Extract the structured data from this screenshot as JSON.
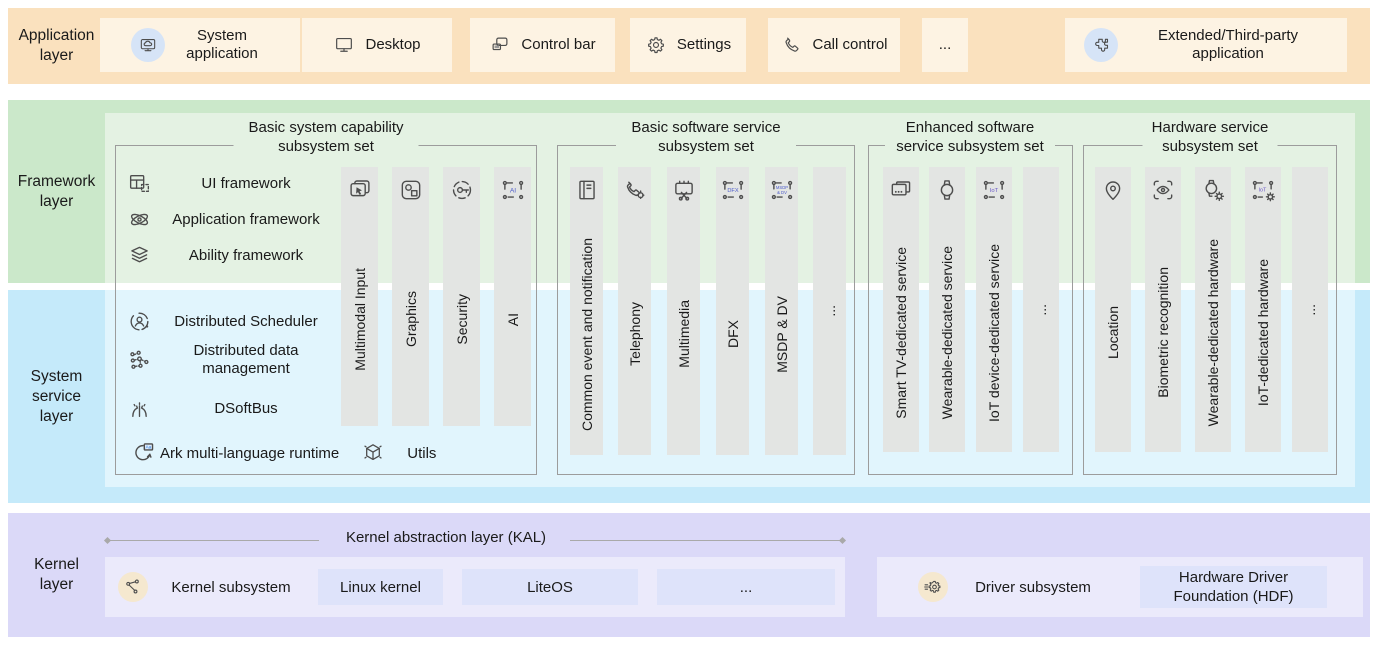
{
  "application_layer": {
    "label": "Application layer",
    "items": [
      {
        "label": "System application",
        "icon": "system-application"
      },
      {
        "label": "Desktop",
        "icon": "desktop"
      },
      {
        "label": "Control bar",
        "icon": "control-bar"
      },
      {
        "label": "Settings",
        "icon": "settings"
      },
      {
        "label": "Call control",
        "icon": "call-control"
      },
      {
        "label": "..."
      },
      {
        "label": "Extended/Third-party application",
        "icon": "extended-application"
      }
    ]
  },
  "framework_layer": {
    "label": "Framework layer",
    "items": [
      {
        "label": "UI framework",
        "icon": "ui-framework"
      },
      {
        "label": "Application framework",
        "icon": "application-framework"
      },
      {
        "label": "Ability framework",
        "icon": "ability-framework"
      }
    ]
  },
  "system_service_layer": {
    "label": "System service layer",
    "items": [
      {
        "label": "Distributed Scheduler",
        "icon": "distributed-scheduler"
      },
      {
        "label": "Distributed data management",
        "icon": "distributed-data-management"
      },
      {
        "label": "DSoftBus",
        "icon": "dsoftbus"
      },
      {
        "label": "Ark multi-language runtime",
        "icon": "ark-runtime"
      },
      {
        "label": "Utils",
        "icon": "utils"
      }
    ]
  },
  "subsystem_sets": [
    {
      "title": "Basic system capability subsystem set",
      "bars": [
        {
          "label": "Multimodal Input",
          "icon": "multimodal-input"
        },
        {
          "label": "Graphics",
          "icon": "graphics"
        },
        {
          "label": "Security",
          "icon": "security"
        },
        {
          "label": "AI",
          "icon": "ai"
        }
      ]
    },
    {
      "title": "Basic software service subsystem set",
      "bars": [
        {
          "label": "Common event and notification",
          "icon": "common-event-notification"
        },
        {
          "label": "Telephony",
          "icon": "telephony"
        },
        {
          "label": "Multimedia",
          "icon": "multimedia"
        },
        {
          "label": "DFX",
          "icon": "dfx"
        },
        {
          "label": "MSDP & DV",
          "icon": "msdp-dv"
        },
        {
          "label": "..."
        }
      ]
    },
    {
      "title": "Enhanced software service subsystem set",
      "bars": [
        {
          "label": "Smart TV-dedicated service",
          "icon": "smart-tv"
        },
        {
          "label": "Wearable-dedicated service",
          "icon": "wearable-service"
        },
        {
          "label": "IoT device-dedicated service",
          "icon": "iot-service"
        },
        {
          "label": "..."
        }
      ]
    },
    {
      "title": "Hardware service subsystem set",
      "bars": [
        {
          "label": "Location",
          "icon": "location"
        },
        {
          "label": "Biometric recognition",
          "icon": "biometric-recognition"
        },
        {
          "label": "Wearable-dedicated hardware",
          "icon": "wearable-hardware"
        },
        {
          "label": "IoT-dedicated hardware",
          "icon": "iot-hardware"
        },
        {
          "label": "..."
        }
      ]
    }
  ],
  "kernel_layer": {
    "label": "Kernel layer",
    "kal_label": "Kernel abstraction layer (KAL)",
    "kernel_subsystem": {
      "label": "Kernel subsystem",
      "icon": "kernel-subsystem",
      "items": [
        {
          "label": "Linux kernel"
        },
        {
          "label": "LiteOS"
        },
        {
          "label": "..."
        }
      ]
    },
    "driver_subsystem": {
      "label": "Driver subsystem",
      "icon": "driver-subsystem",
      "items": [
        {
          "label": "Hardware Driver Foundation (HDF)"
        }
      ]
    }
  },
  "colors": {
    "application_band": "#FAE1BE",
    "application_box": "#FDF3E3",
    "framework_band": "#CBE8CA",
    "framework_panel": "#E4F2E3",
    "system_band": "#C5EAFA",
    "system_panel": "#E1F5FD",
    "kernel_band": "#DBD9F8",
    "kernel_panel": "#EBEAFB",
    "kernel_box": "#DEE3FA",
    "bar_fill": "#E3E5E3",
    "container_border": "#9C9C9C",
    "badge_blue": "#D6E4F7",
    "badge_tan": "#F5E8CF",
    "line_gray": "#A9A9A9",
    "text": "#1A1A1A"
  }
}
